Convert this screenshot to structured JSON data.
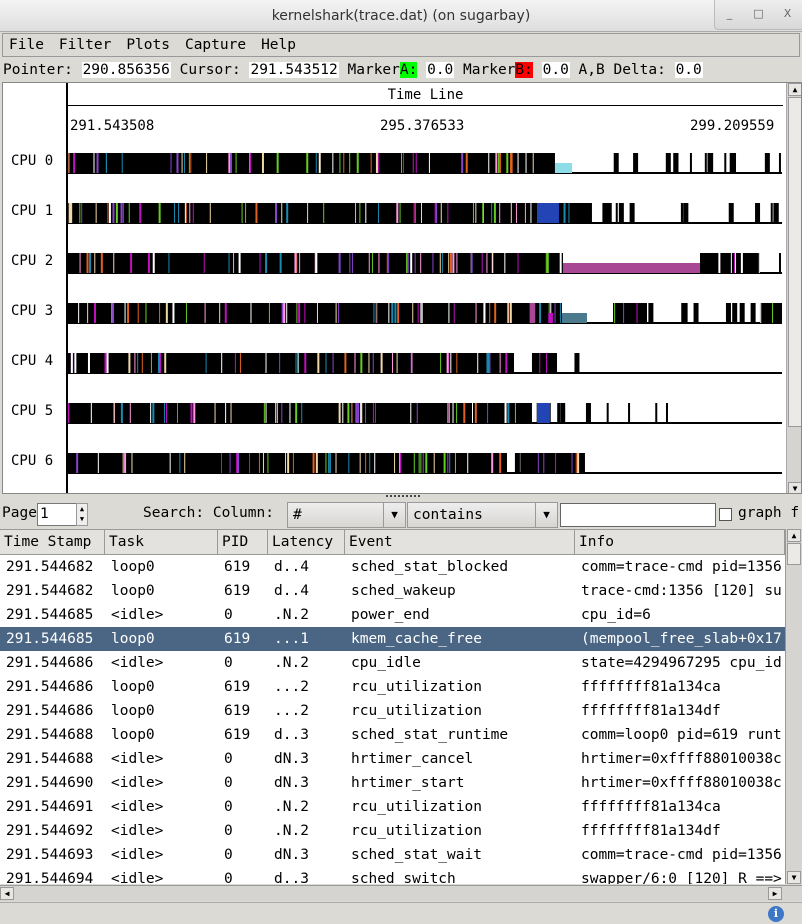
{
  "window": {
    "title": "kernelshark(trace.dat) (on sugarbay)",
    "minimize": "_",
    "maximize": "□",
    "close": "X"
  },
  "menu": [
    "File",
    "Filter",
    "Plots",
    "Capture",
    "Help"
  ],
  "infobar": {
    "pointer_label": "Pointer: ",
    "pointer": "290.856356",
    "cursor_label": " Cursor: ",
    "cursor": "291.543512",
    "marker_label": " Marker",
    "marker_a": "A:",
    "marker_a_val": "0.0",
    "marker_b": "B:",
    "marker_b_val": "0.0",
    "delta_label": " A,B Delta: ",
    "delta": "0.0",
    "marker_a_color": "#00ff00",
    "marker_b_color": "#ff0000"
  },
  "graph": {
    "timeline_title": "Time Line",
    "ticks": [
      "291.543508",
      "295.376533",
      "299.209559"
    ],
    "time_range": [
      291.543508,
      299.209559
    ],
    "cpus": [
      {
        "label": "CPU 0",
        "busy": [
          [
            291.543508,
            296.772
          ]
        ],
        "sparse": [
          296.955,
          299.2096
        ],
        "blocks": [
          [
            296.772,
            296.955,
            "#8edde6",
            "half"
          ]
        ]
      },
      {
        "label": "CPU 1",
        "busy": [
          [
            291.543508,
            297.169
          ]
        ],
        "sparse": [
          297.169,
          299.2096
        ],
        "blocks": [
          [
            296.579,
            296.815,
            "#2244b4",
            "full"
          ]
        ]
      },
      {
        "label": "CPU 2",
        "busy": [
          [
            291.543508,
            296.858
          ],
          [
            298.329,
            298.973
          ]
        ],
        "sparse": [
          298.973,
          299.2096
        ],
        "blocks": [
          [
            296.858,
            298.329,
            "#a84894",
            "half"
          ]
        ]
      },
      {
        "label": "CPU 3",
        "busy": [
          [
            291.543508,
            296.847
          ],
          [
            297.395,
            297.76
          ],
          [
            298.973,
            299.2096
          ]
        ],
        "sparse": [
          297.76,
          298.973
        ],
        "blocks": [
          [
            296.847,
            297.116,
            "#4a7a8c",
            "half"
          ],
          [
            296.5,
            296.56,
            "#a84894",
            "full"
          ],
          [
            296.7,
            296.75,
            "#c010c0",
            "half"
          ]
        ]
      },
      {
        "label": "CPU 4",
        "busy": [
          [
            291.543508,
            296.332
          ],
          [
            296.525,
            296.794
          ]
        ],
        "sparse": [
          296.794,
          297.0
        ],
        "blocks": []
      },
      {
        "label": "CPU 5",
        "busy": [
          [
            291.543508,
            296.525
          ]
        ],
        "sparse": [
          296.525,
          298.0
        ],
        "blocks": [
          [
            296.579,
            296.718,
            "#2244b4",
            "full"
          ]
        ]
      },
      {
        "label": "CPU 6",
        "busy": [
          [
            291.543508,
            296.257
          ],
          [
            296.4,
            297.094
          ]
        ],
        "sparse": [
          296.257,
          296.4
        ],
        "blocks": []
      }
    ]
  },
  "search": {
    "page_label": "Page",
    "page": "1",
    "search_label": "Search: Column:",
    "column": "#",
    "mode": "contains",
    "value": "",
    "graph_label": "graph f"
  },
  "table": {
    "columns": [
      "Time Stamp",
      "Task",
      "PID",
      "Latency",
      "Event",
      "Info"
    ],
    "rows": [
      [
        "291.544682",
        "loop0",
        "619",
        "d..4",
        "sched_stat_blocked",
        "comm=trace-cmd pid=1356"
      ],
      [
        "291.544682",
        "loop0",
        "619",
        "d..4",
        "sched_wakeup",
        "trace-cmd:1356 [120] su"
      ],
      [
        "291.544685",
        "<idle>",
        "0",
        ".N.2",
        "power_end",
        "cpu_id=6"
      ],
      [
        "291.544685",
        "loop0",
        "619",
        "...1",
        "kmem_cache_free",
        "(mempool_free_slab+0x17"
      ],
      [
        "291.544686",
        "<idle>",
        "0",
        ".N.2",
        "cpu_idle",
        "state=4294967295 cpu_id"
      ],
      [
        "291.544686",
        "loop0",
        "619",
        "...2",
        "rcu_utilization",
        "ffffffff81a134ca"
      ],
      [
        "291.544686",
        "loop0",
        "619",
        "...2",
        "rcu_utilization",
        "ffffffff81a134df"
      ],
      [
        "291.544688",
        "loop0",
        "619",
        "d..3",
        "sched_stat_runtime",
        "comm=loop0 pid=619 runt"
      ],
      [
        "291.544688",
        "<idle>",
        "0",
        "dN.3",
        "hrtimer_cancel",
        "hrtimer=0xffff88010038c"
      ],
      [
        "291.544690",
        "<idle>",
        "0",
        "dN.3",
        "hrtimer_start",
        "hrtimer=0xffff88010038c"
      ],
      [
        "291.544691",
        "<idle>",
        "0",
        ".N.2",
        "rcu_utilization",
        "ffffffff81a134ca"
      ],
      [
        "291.544692",
        "<idle>",
        "0",
        ".N.2",
        "rcu_utilization",
        "ffffffff81a134df"
      ],
      [
        "291.544693",
        "<idle>",
        "0",
        "dN.3",
        "sched_stat_wait",
        "comm=trace-cmd pid=1356"
      ],
      [
        "291.544694",
        "<idle>",
        "0",
        "d..3",
        "sched_switch",
        "swapper/6:0 [120] R ==>"
      ]
    ],
    "selected_row": 3,
    "selected_color": "#4a6684"
  }
}
